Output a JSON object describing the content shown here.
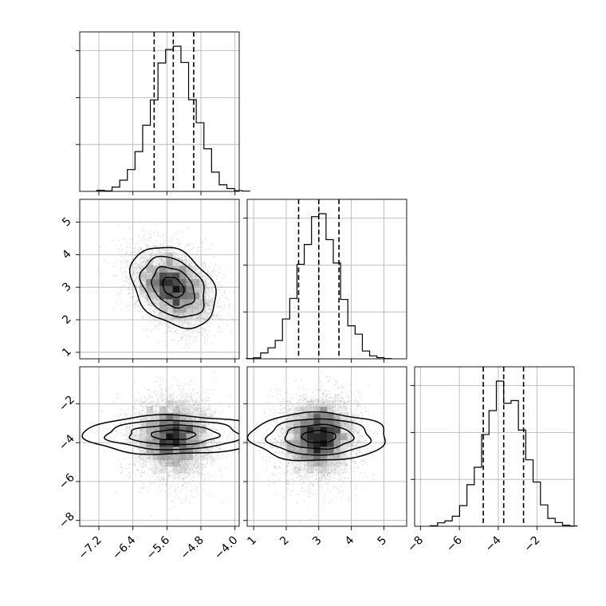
{
  "chart_data": {
    "type": "corner",
    "grid": true,
    "parameters": [
      {
        "index": 0,
        "range": [
          -7.65,
          -3.9
        ],
        "ticks": [
          -7.2,
          -6.4,
          -5.6,
          -4.8,
          -4.0
        ],
        "tick_labels": [
          "−7.2",
          "−6.4",
          "−5.6",
          "−4.8",
          "−4.0"
        ],
        "mean": -5.45,
        "sd": 0.5,
        "quantiles": [
          -5.9,
          -5.45,
          -4.97
        ]
      },
      {
        "index": 1,
        "range": [
          0.8,
          5.7
        ],
        "ticks": [
          1,
          2,
          3,
          4,
          5
        ],
        "tick_labels": [
          "1",
          "2",
          "3",
          "4",
          "5"
        ],
        "mean": 3.0,
        "sd": 0.62,
        "quantiles": [
          2.38,
          3.0,
          3.62
        ]
      },
      {
        "index": 2,
        "range": [
          -8.3,
          -0.1
        ],
        "ticks": [
          -8,
          -6,
          -4,
          -2
        ],
        "tick_labels": [
          "−8",
          "−6",
          "−4",
          "−2"
        ],
        "mean": -3.72,
        "sd": 1.05,
        "quantiles": [
          -4.77,
          -3.72,
          -2.7
        ]
      }
    ],
    "pairs": [
      {
        "x": 0,
        "y": 1,
        "correlation": -0.32,
        "center": [
          -5.45,
          3.0
        ]
      },
      {
        "x": 0,
        "y": 2,
        "correlation": 0.0,
        "center": [
          -5.45,
          -3.6
        ]
      },
      {
        "x": 1,
        "y": 2,
        "correlation": 0.0,
        "center": [
          3.0,
          -3.7
        ]
      }
    ],
    "histogram_bins": 20,
    "contour_levels": [
      0.5,
      1.0,
      1.5,
      2.0
    ],
    "colors": {
      "line": "#000000",
      "points": "#7f7f7f",
      "grid": "#b0b0b0"
    }
  }
}
